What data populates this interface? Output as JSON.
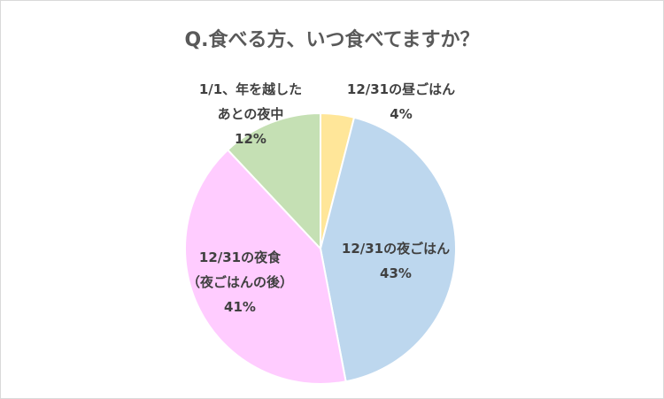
{
  "chart_data": {
    "type": "pie",
    "title": "Q.食べる方、いつ食べてますか？",
    "categories": [
      [
        "12/31の昼ごはん"
      ],
      [
        "12/31の夜ごはん"
      ],
      [
        "12/31の夜食",
        "（夜ごはんの後）"
      ],
      [
        "1/1、年を越した",
        "あとの夜中"
      ]
    ],
    "values": [
      4,
      43,
      41,
      12
    ],
    "value_labels": [
      "4%",
      "43%",
      "41%",
      "12%"
    ],
    "colors": [
      "#FFE699",
      "#BDD7EE",
      "#FFCCFF",
      "#C5E0B4"
    ]
  }
}
